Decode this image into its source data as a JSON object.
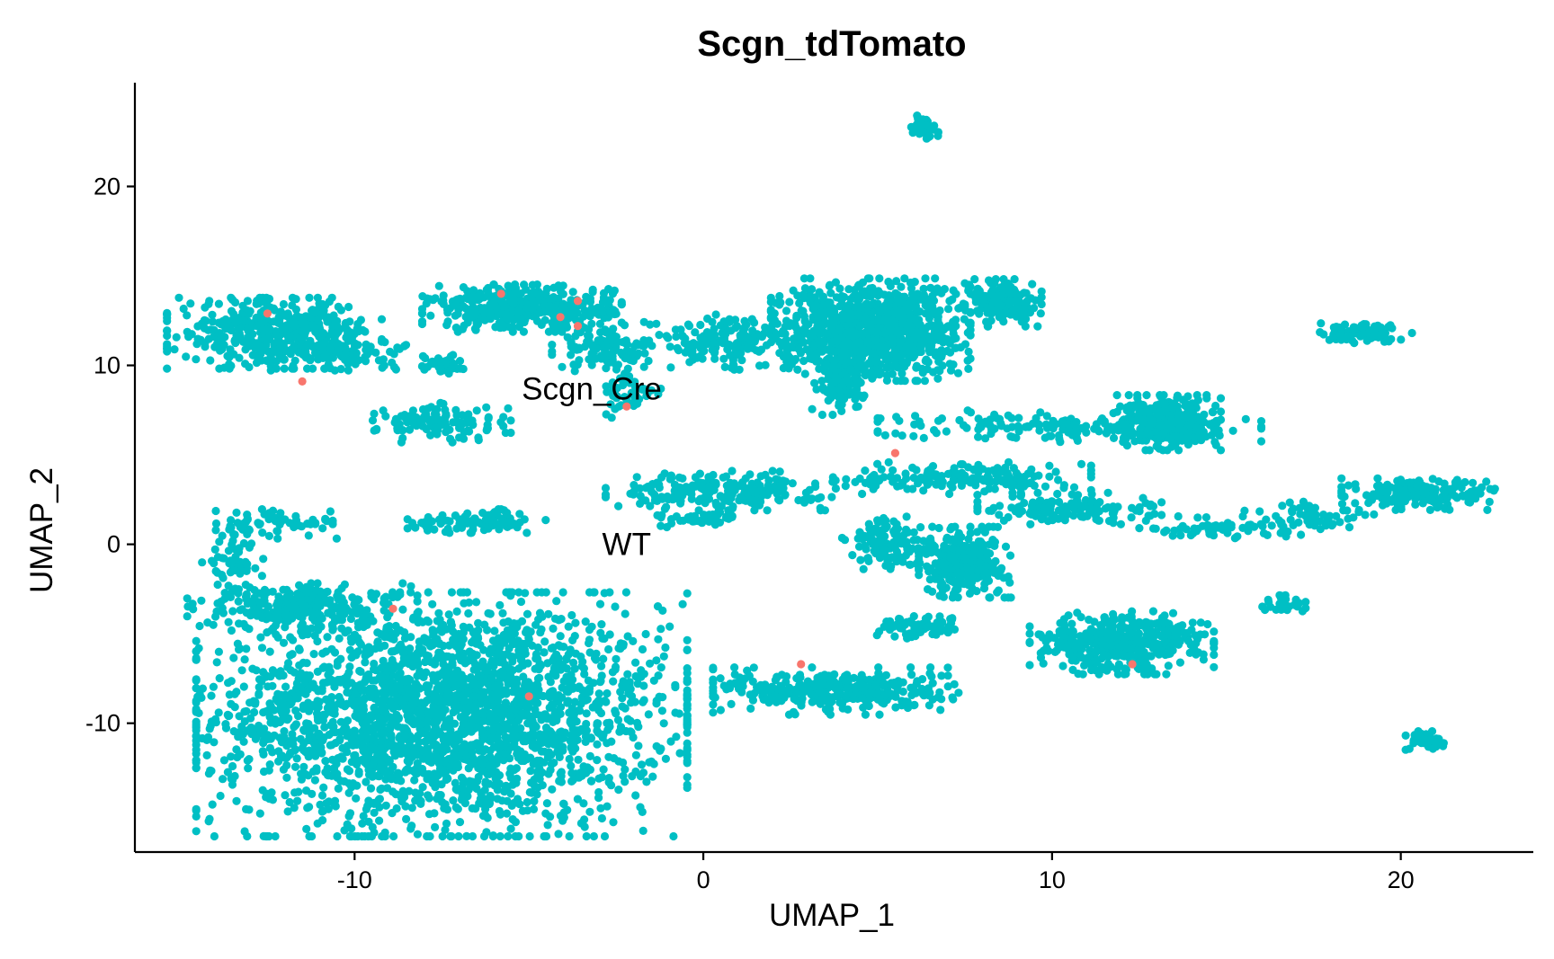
{
  "chart_data": {
    "type": "scatter",
    "title": "Scgn_tdTomato",
    "xlabel": "UMAP_1",
    "ylabel": "UMAP_2",
    "xlim": [
      -16.3,
      23.8
    ],
    "ylim": [
      -17.2,
      25.8
    ],
    "xticks": [
      -10,
      0,
      10,
      20
    ],
    "yticks": [
      -10,
      0,
      10,
      20
    ],
    "xtick_labels": [
      "-10",
      "0",
      "10",
      "20"
    ],
    "ytick_labels": [
      "-10",
      "0",
      "10",
      "20"
    ],
    "grid": false,
    "legend": "none",
    "series": [
      {
        "color": "#00BFC4",
        "clusters": [
          {
            "cx": -7.5,
            "cy": -9.5,
            "sx": 3.2,
            "sy": 3.1,
            "n": 2600
          },
          {
            "cx": -11.5,
            "cy": -3.5,
            "sx": 1.5,
            "sy": 0.6,
            "n": 200
          },
          {
            "cx": -13.5,
            "cy": -1.0,
            "sx": 0.4,
            "sy": 1.0,
            "n": 70
          },
          {
            "cx": -12.0,
            "cy": 1.2,
            "sx": 0.9,
            "sy": 0.4,
            "n": 60
          },
          {
            "cx": -12.3,
            "cy": 11.8,
            "sx": 1.4,
            "sy": 0.9,
            "n": 420
          },
          {
            "cx": -10.2,
            "cy": 10.6,
            "sx": 1.0,
            "sy": 0.4,
            "n": 70
          },
          {
            "cx": -7.5,
            "cy": 10.1,
            "sx": 0.3,
            "sy": 0.25,
            "n": 45
          },
          {
            "cx": -7.5,
            "cy": 6.8,
            "sx": 0.9,
            "sy": 0.5,
            "n": 120
          },
          {
            "cx": -5.2,
            "cy": 13.2,
            "sx": 1.3,
            "sy": 0.6,
            "n": 380
          },
          {
            "cx": -2.8,
            "cy": 11.0,
            "sx": 0.7,
            "sy": 0.6,
            "n": 110
          },
          {
            "cx": -2.1,
            "cy": 8.4,
            "sx": 0.4,
            "sy": 0.6,
            "n": 45
          },
          {
            "cx": 0.5,
            "cy": 11.3,
            "sx": 1.0,
            "sy": 0.7,
            "n": 160
          },
          {
            "cx": -6.5,
            "cy": 1.3,
            "sx": 0.9,
            "sy": 0.3,
            "n": 90
          },
          {
            "cx": 0.5,
            "cy": 3.0,
            "sx": 1.5,
            "sy": 0.5,
            "n": 220
          },
          {
            "cx": 0.0,
            "cy": 1.4,
            "sx": 0.6,
            "sy": 0.2,
            "n": 50
          },
          {
            "cx": 3.8,
            "cy": -8.2,
            "sx": 1.6,
            "sy": 0.6,
            "n": 350
          },
          {
            "cx": 4.8,
            "cy": 12.0,
            "sx": 1.3,
            "sy": 1.3,
            "n": 1000
          },
          {
            "cx": 4.0,
            "cy": 9.0,
            "sx": 0.4,
            "sy": 0.8,
            "n": 100
          },
          {
            "cx": 8.6,
            "cy": 13.5,
            "sx": 0.5,
            "sy": 0.6,
            "n": 160
          },
          {
            "cx": 6.3,
            "cy": 23.3,
            "sx": 0.2,
            "sy": 0.3,
            "n": 45
          },
          {
            "cx": 10.5,
            "cy": 6.6,
            "sx": 2.5,
            "sy": 0.4,
            "n": 180
          },
          {
            "cx": 13.3,
            "cy": 6.8,
            "sx": 0.7,
            "sy": 0.7,
            "n": 320
          },
          {
            "cx": 7.6,
            "cy": 3.7,
            "sx": 1.6,
            "sy": 0.4,
            "n": 160
          },
          {
            "cx": 10.5,
            "cy": 2.0,
            "sx": 1.2,
            "sy": 0.4,
            "n": 140
          },
          {
            "cx": 7.5,
            "cy": -1.0,
            "sx": 0.6,
            "sy": 0.9,
            "n": 320
          },
          {
            "cx": 5.3,
            "cy": 0.0,
            "sx": 0.6,
            "sy": 0.7,
            "n": 120
          },
          {
            "cx": 6.3,
            "cy": -4.6,
            "sx": 0.6,
            "sy": 0.3,
            "n": 70
          },
          {
            "cx": 12.0,
            "cy": -5.5,
            "sx": 1.2,
            "sy": 0.8,
            "n": 420
          },
          {
            "cx": 14.5,
            "cy": 0.9,
            "sx": 1.3,
            "sy": 0.3,
            "n": 60
          },
          {
            "cx": 17.5,
            "cy": 1.5,
            "sx": 0.9,
            "sy": 0.4,
            "n": 60
          },
          {
            "cx": 20.5,
            "cy": 2.8,
            "sx": 1.0,
            "sy": 0.4,
            "n": 180
          },
          {
            "cx": 19.0,
            "cy": 11.8,
            "sx": 0.6,
            "sy": 0.25,
            "n": 90
          },
          {
            "cx": 20.8,
            "cy": -11.0,
            "sx": 0.3,
            "sy": 0.25,
            "n": 45
          },
          {
            "cx": 16.7,
            "cy": -3.4,
            "sx": 0.4,
            "sy": 0.25,
            "n": 25
          }
        ]
      },
      {
        "color": "#F8766D",
        "points": [
          [
            -12.5,
            12.9
          ],
          [
            -11.5,
            9.1
          ],
          [
            -5.8,
            14.0
          ],
          [
            -4.1,
            12.7
          ],
          [
            -3.6,
            12.2
          ],
          [
            -3.6,
            13.6
          ],
          [
            -2.2,
            7.7
          ],
          [
            -8.9,
            -3.6
          ],
          [
            5.5,
            5.1
          ],
          [
            2.8,
            -6.7
          ],
          [
            12.3,
            -6.7
          ],
          [
            -5.0,
            -8.5
          ]
        ]
      }
    ],
    "annotations": [
      {
        "text": "Scgn_Cre",
        "x": -3.2,
        "y": 8.7
      },
      {
        "text": "WT",
        "x": -2.2,
        "y": 0.0
      }
    ]
  }
}
